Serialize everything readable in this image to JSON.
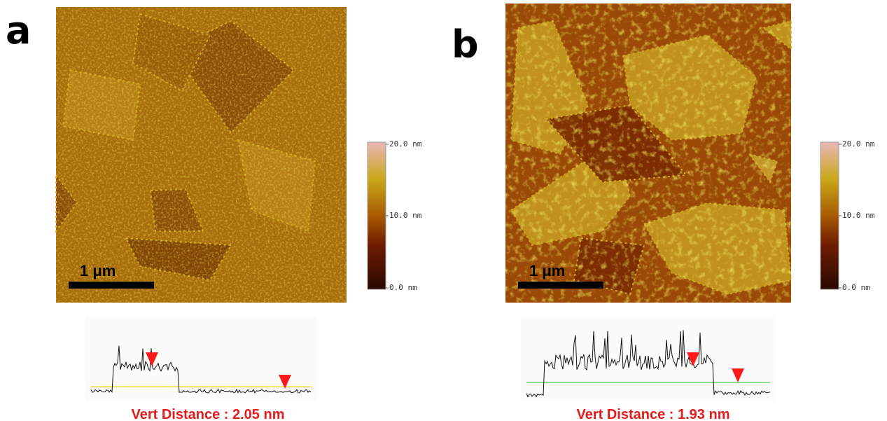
{
  "panels": [
    {
      "label": "a",
      "scale_bar": "1 μm",
      "colorbar": {
        "max": "20.0 nm",
        "mid": "10.0 nm",
        "min": "0.0 nm"
      },
      "profile": {
        "caption": "Vert Distance : 2.05 nm"
      }
    },
    {
      "label": "b",
      "scale_bar": "1 μm",
      "colorbar": {
        "max": "20.0 nm",
        "mid": "10.0 nm",
        "min": "0.0 nm"
      },
      "profile": {
        "caption": "Vert Distance : 1.93 nm"
      }
    }
  ]
}
